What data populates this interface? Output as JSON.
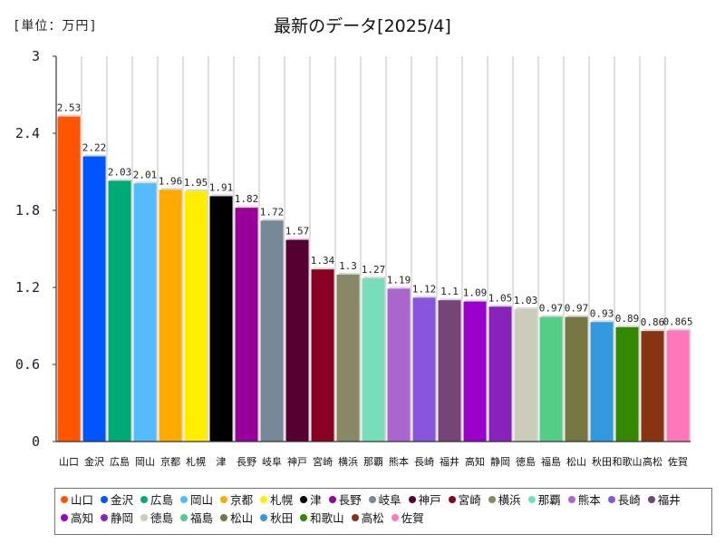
{
  "chart_data": {
    "type": "bar",
    "title": "最新のデータ[2025/4]",
    "unit_label": "[単位：万円]",
    "xlabel": "",
    "ylabel": "",
    "ylim": [
      0,
      3
    ],
    "yticks": [
      "0",
      "0.6",
      "1.2",
      "1.8",
      "2.4",
      "3"
    ],
    "grid": true,
    "legend_position": "bottom",
    "categories": [
      "山口",
      "金沢",
      "広島",
      "岡山",
      "京都",
      "札幌",
      "津",
      "長野",
      "岐阜",
      "神戸",
      "宮崎",
      "横浜",
      "那覇",
      "熊本",
      "長崎",
      "福井",
      "高知",
      "静岡",
      "徳島",
      "福島",
      "松山",
      "秋田",
      "和歌山",
      "高松",
      "佐賀"
    ],
    "values": [
      2.53,
      2.22,
      2.03,
      2.01,
      1.96,
      1.95,
      1.91,
      1.82,
      1.72,
      1.57,
      1.34,
      1.3,
      1.27,
      1.19,
      1.12,
      1.1,
      1.09,
      1.05,
      1.03,
      0.97,
      0.97,
      0.93,
      0.89,
      0.86,
      0.865
    ],
    "value_labels": [
      "2.53",
      "2.22",
      "2.03",
      "2.01",
      "1.96",
      "1.95",
      "1.91",
      "1.82",
      "1.72",
      "1.57",
      "1.34",
      "1.3",
      "1.27",
      "1.19",
      "1.12",
      "1.1",
      "1.09",
      "1.05",
      "1.03",
      "0.97",
      "0.97",
      "0.93",
      "0.89",
      "0.86",
      "0.865"
    ],
    "colors": [
      "#ff5500",
      "#0055ff",
      "#00aa77",
      "#55bbff",
      "#ffaa00",
      "#ffee00",
      "#000000",
      "#990099",
      "#778899",
      "#550033",
      "#880022",
      "#888866",
      "#77ddbb",
      "#aa66cc",
      "#8855dd",
      "#774477",
      "#9900cc",
      "#8822bb",
      "#ccccbb",
      "#55cc88",
      "#777744",
      "#3399dd",
      "#338800",
      "#883311",
      "#ff77bb"
    ]
  }
}
